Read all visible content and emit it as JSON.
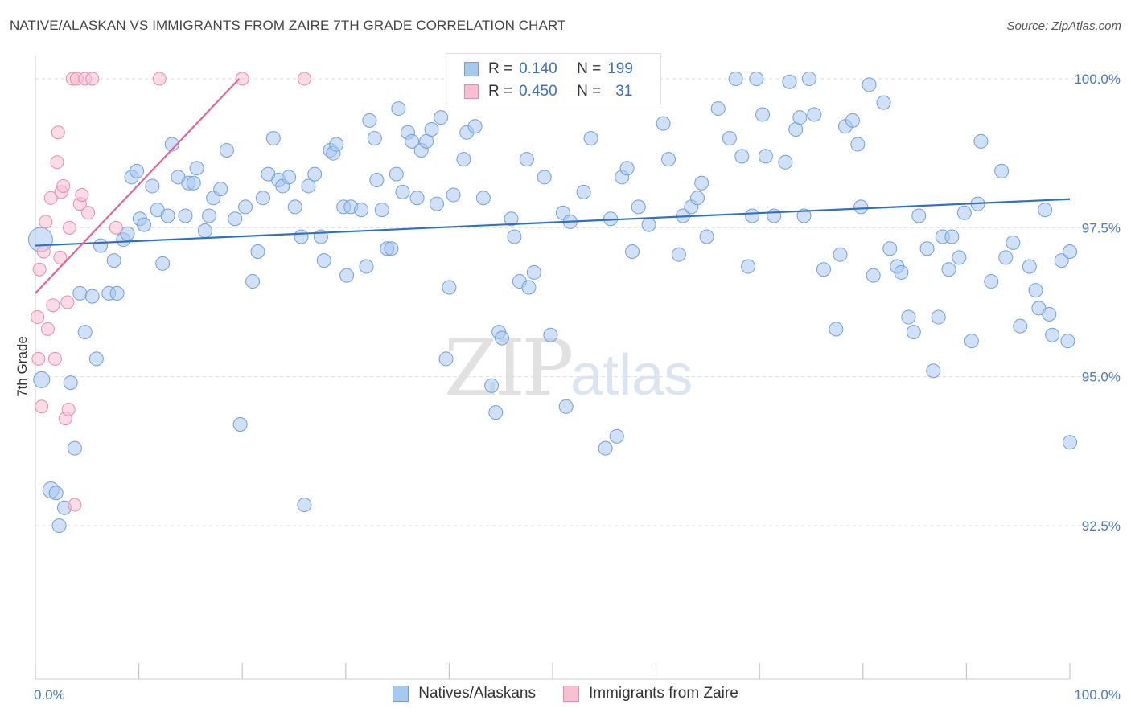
{
  "title": "NATIVE/ALASKAN VS IMMIGRANTS FROM ZAIRE 7TH GRADE CORRELATION CHART",
  "source": "Source: ZipAtlas.com",
  "watermark": {
    "zip": "ZIP",
    "atlas": "atlas"
  },
  "legend": {
    "series1": {
      "r_label": "R =",
      "r_value": "0.140",
      "n_label": "N =",
      "n_value": "199"
    },
    "series2": {
      "r_label": "R =",
      "r_value": "0.450",
      "n_label": "N =",
      "n_value": "31"
    }
  },
  "bottom_legend": {
    "series1": "Natives/Alaskans",
    "series2": "Immigrants from Zaire"
  },
  "colors": {
    "blue_fill": "#a9c8f0",
    "blue_stroke": "#6f9fdc",
    "blue_line": "#2f6fcc",
    "pink_fill": "#f7bfd2",
    "pink_stroke": "#e98aab",
    "pink_line": "#e0659a",
    "tick_text": "#4a78c2"
  },
  "chart_data": {
    "type": "scatter",
    "title": "NATIVE/ALASKAN VS IMMIGRANTS FROM ZAIRE 7TH GRADE CORRELATION CHART",
    "xlabel": "",
    "ylabel": "7th Grade",
    "xlim": [
      0,
      100
    ],
    "ylim": [
      90.0,
      100.25
    ],
    "x_tick_labels": [
      "0.0%",
      "100.0%"
    ],
    "y_ticks": [
      {
        "value": 100.0,
        "label": "100.0%"
      },
      {
        "value": 97.5,
        "label": "97.5%"
      },
      {
        "value": 95.0,
        "label": "95.0%"
      },
      {
        "value": 92.5,
        "label": "92.5%"
      }
    ],
    "series": [
      {
        "name": "Natives/Alaskans",
        "trend": {
          "x": [
            0,
            100
          ],
          "y": [
            97.2,
            97.98
          ]
        },
        "points": [
          [
            0.5,
            97.3
          ],
          [
            0.6,
            94.95
          ],
          [
            1.5,
            93.1
          ],
          [
            2.0,
            93.05
          ],
          [
            2.3,
            92.5
          ],
          [
            2.8,
            92.8
          ],
          [
            3.4,
            94.9
          ],
          [
            3.8,
            93.8
          ],
          [
            4.3,
            96.4
          ],
          [
            4.8,
            95.75
          ],
          [
            5.5,
            96.35
          ],
          [
            5.9,
            95.3
          ],
          [
            6.3,
            97.2
          ],
          [
            7.1,
            96.4
          ],
          [
            7.6,
            96.95
          ],
          [
            7.9,
            96.4
          ],
          [
            8.5,
            97.3
          ],
          [
            8.9,
            97.4
          ],
          [
            9.3,
            98.35
          ],
          [
            9.8,
            98.45
          ],
          [
            10.1,
            97.65
          ],
          [
            10.5,
            97.55
          ],
          [
            11.3,
            98.2
          ],
          [
            11.8,
            97.8
          ],
          [
            12.3,
            96.9
          ],
          [
            12.8,
            97.7
          ],
          [
            13.2,
            98.9
          ],
          [
            13.8,
            98.35
          ],
          [
            14.5,
            97.7
          ],
          [
            14.8,
            98.25
          ],
          [
            15.3,
            98.25
          ],
          [
            15.6,
            98.5
          ],
          [
            16.4,
            97.45
          ],
          [
            16.8,
            97.7
          ],
          [
            17.2,
            98.0
          ],
          [
            17.9,
            98.15
          ],
          [
            18.5,
            98.8
          ],
          [
            19.3,
            97.65
          ],
          [
            19.8,
            94.2
          ],
          [
            20.3,
            97.85
          ],
          [
            21.0,
            96.6
          ],
          [
            21.5,
            97.1
          ],
          [
            22.0,
            98.0
          ],
          [
            22.5,
            98.4
          ],
          [
            23.0,
            99.0
          ],
          [
            23.5,
            98.3
          ],
          [
            23.9,
            98.2
          ],
          [
            24.5,
            98.35
          ],
          [
            25.1,
            97.85
          ],
          [
            25.7,
            97.35
          ],
          [
            26.0,
            92.85
          ],
          [
            26.4,
            98.2
          ],
          [
            27.0,
            98.4
          ],
          [
            27.6,
            97.35
          ],
          [
            27.9,
            96.95
          ],
          [
            28.5,
            98.8
          ],
          [
            28.8,
            98.75
          ],
          [
            29.1,
            98.9
          ],
          [
            29.8,
            97.85
          ],
          [
            30.1,
            96.7
          ],
          [
            30.5,
            97.85
          ],
          [
            31.5,
            97.8
          ],
          [
            32.0,
            96.85
          ],
          [
            32.3,
            99.3
          ],
          [
            32.8,
            99.0
          ],
          [
            33.0,
            98.3
          ],
          [
            33.5,
            97.8
          ],
          [
            34.0,
            97.15
          ],
          [
            34.4,
            97.15
          ],
          [
            34.9,
            98.4
          ],
          [
            35.1,
            99.5
          ],
          [
            35.5,
            98.1
          ],
          [
            36.0,
            99.1
          ],
          [
            36.4,
            98.95
          ],
          [
            36.9,
            98.0
          ],
          [
            37.3,
            98.8
          ],
          [
            37.8,
            98.95
          ],
          [
            38.3,
            99.15
          ],
          [
            38.8,
            97.9
          ],
          [
            39.2,
            99.35
          ],
          [
            39.7,
            95.3
          ],
          [
            40.0,
            96.5
          ],
          [
            40.4,
            98.05
          ],
          [
            41.4,
            98.65
          ],
          [
            41.7,
            99.1
          ],
          [
            42.5,
            99.2
          ],
          [
            43.3,
            98.0
          ],
          [
            44.1,
            94.85
          ],
          [
            44.5,
            94.4
          ],
          [
            44.8,
            95.75
          ],
          [
            45.1,
            95.65
          ],
          [
            46.0,
            97.65
          ],
          [
            46.3,
            97.35
          ],
          [
            46.8,
            96.6
          ],
          [
            47.5,
            98.65
          ],
          [
            47.7,
            96.5
          ],
          [
            48.2,
            96.75
          ],
          [
            49.2,
            98.35
          ],
          [
            49.5,
            99.95
          ],
          [
            49.8,
            95.7
          ],
          [
            50.0,
            99.9
          ],
          [
            50.4,
            99.85
          ],
          [
            51.0,
            97.75
          ],
          [
            51.3,
            94.5
          ],
          [
            51.7,
            97.6
          ],
          [
            52.7,
            99.95
          ],
          [
            53.0,
            98.1
          ],
          [
            53.7,
            99.0
          ],
          [
            54.1,
            99.85
          ],
          [
            55.1,
            93.8
          ],
          [
            55.6,
            97.65
          ],
          [
            56.2,
            94.0
          ],
          [
            56.7,
            98.35
          ],
          [
            57.2,
            98.5
          ],
          [
            57.7,
            97.1
          ],
          [
            58.3,
            97.85
          ],
          [
            59.3,
            97.55
          ],
          [
            60.7,
            99.25
          ],
          [
            61.2,
            98.65
          ],
          [
            62.2,
            97.05
          ],
          [
            62.6,
            97.7
          ],
          [
            63.4,
            97.85
          ],
          [
            64.0,
            98.0
          ],
          [
            64.4,
            98.25
          ],
          [
            64.9,
            97.35
          ],
          [
            66.0,
            99.5
          ],
          [
            67.1,
            99.0
          ],
          [
            67.7,
            100.0
          ],
          [
            68.3,
            98.7
          ],
          [
            68.9,
            96.85
          ],
          [
            69.3,
            97.7
          ],
          [
            69.7,
            100.0
          ],
          [
            70.3,
            99.4
          ],
          [
            70.6,
            98.7
          ],
          [
            71.4,
            97.7
          ],
          [
            72.5,
            98.6
          ],
          [
            72.9,
            99.95
          ],
          [
            73.5,
            99.15
          ],
          [
            73.9,
            99.35
          ],
          [
            74.3,
            97.7
          ],
          [
            74.8,
            100.0
          ],
          [
            75.3,
            99.4
          ],
          [
            76.2,
            96.8
          ],
          [
            77.4,
            95.8
          ],
          [
            77.8,
            97.05
          ],
          [
            78.3,
            99.2
          ],
          [
            79.0,
            99.3
          ],
          [
            79.5,
            98.9
          ],
          [
            79.8,
            97.85
          ],
          [
            80.6,
            99.9
          ],
          [
            81.0,
            96.7
          ],
          [
            82.0,
            99.6
          ],
          [
            82.6,
            97.15
          ],
          [
            83.3,
            96.85
          ],
          [
            83.7,
            96.75
          ],
          [
            84.4,
            96.0
          ],
          [
            84.9,
            95.75
          ],
          [
            85.4,
            97.7
          ],
          [
            86.2,
            97.15
          ],
          [
            86.8,
            95.1
          ],
          [
            87.3,
            96.0
          ],
          [
            87.7,
            97.35
          ],
          [
            88.3,
            96.8
          ],
          [
            88.6,
            97.35
          ],
          [
            89.3,
            97.0
          ],
          [
            89.8,
            97.75
          ],
          [
            90.5,
            95.6
          ],
          [
            91.1,
            97.9
          ],
          [
            91.4,
            98.95
          ],
          [
            92.4,
            96.6
          ],
          [
            93.4,
            98.45
          ],
          [
            93.8,
            97.0
          ],
          [
            94.5,
            97.25
          ],
          [
            95.2,
            95.85
          ],
          [
            96.1,
            96.85
          ],
          [
            96.7,
            96.45
          ],
          [
            97.0,
            96.15
          ],
          [
            97.6,
            97.8
          ],
          [
            98.0,
            96.05
          ],
          [
            98.3,
            95.7
          ],
          [
            99.2,
            96.95
          ],
          [
            99.8,
            95.6
          ],
          [
            100.0,
            93.9
          ],
          [
            100.0,
            97.1
          ]
        ]
      },
      {
        "name": "Immigrants from Zaire",
        "trend": {
          "x": [
            0,
            19.7
          ],
          "y": [
            96.4,
            100.0
          ]
        },
        "points": [
          [
            0.2,
            96.0
          ],
          [
            0.3,
            95.3
          ],
          [
            0.4,
            96.8
          ],
          [
            0.6,
            94.5
          ],
          [
            0.8,
            97.1
          ],
          [
            1.0,
            97.6
          ],
          [
            1.2,
            95.8
          ],
          [
            1.5,
            98.0
          ],
          [
            1.7,
            96.2
          ],
          [
            1.9,
            95.3
          ],
          [
            2.1,
            98.6
          ],
          [
            2.2,
            99.1
          ],
          [
            2.4,
            97.0
          ],
          [
            2.5,
            98.1
          ],
          [
            2.7,
            98.2
          ],
          [
            2.9,
            94.3
          ],
          [
            3.1,
            96.25
          ],
          [
            3.2,
            94.45
          ],
          [
            3.3,
            97.5
          ],
          [
            3.6,
            100.0
          ],
          [
            3.8,
            92.85
          ],
          [
            4.0,
            100.0
          ],
          [
            4.3,
            97.9
          ],
          [
            4.5,
            98.05
          ],
          [
            4.8,
            100.0
          ],
          [
            5.1,
            97.75
          ],
          [
            5.5,
            100.0
          ],
          [
            7.8,
            97.5
          ],
          [
            12.0,
            100.0
          ],
          [
            20.0,
            100.0
          ],
          [
            26.0,
            100.0
          ]
        ]
      }
    ]
  }
}
